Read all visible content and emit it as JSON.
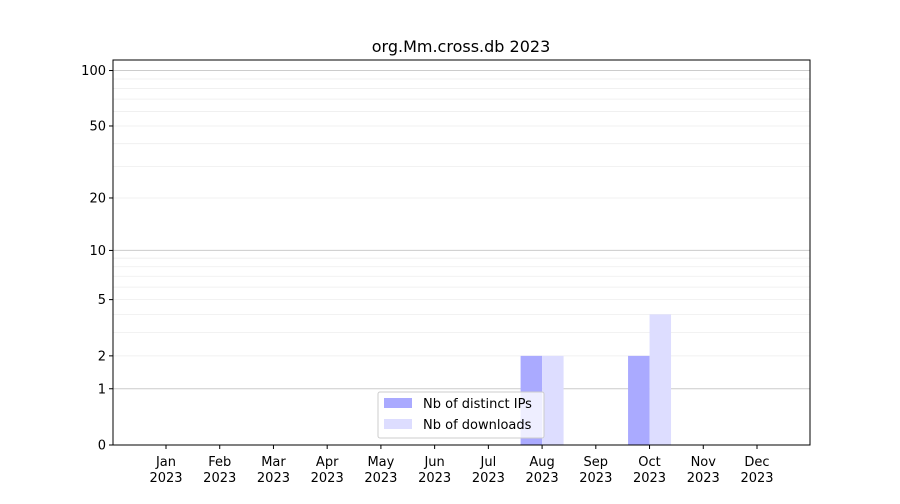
{
  "chart_data": {
    "type": "bar",
    "title": "org.Mm.cross.db 2023",
    "xlabel": "",
    "ylabel": "",
    "yscale": "log(1+y)",
    "ylim": [
      0,
      114
    ],
    "yticks": [
      0,
      1,
      2,
      5,
      10,
      20,
      50,
      100
    ],
    "ytick_labels": [
      "0",
      "1",
      "2",
      "5",
      "10",
      "20",
      "50",
      "100"
    ],
    "grid": true,
    "legend_position": "bottom-center",
    "categories": [
      "Jan\n2023",
      "Feb\n2023",
      "Mar\n2023",
      "Apr\n2023",
      "May\n2023",
      "Jun\n2023",
      "Jul\n2023",
      "Aug\n2023",
      "Sep\n2023",
      "Oct\n2023",
      "Nov\n2023",
      "Dec\n2023"
    ],
    "category_lines": [
      [
        "Jan",
        "2023"
      ],
      [
        "Feb",
        "2023"
      ],
      [
        "Mar",
        "2023"
      ],
      [
        "Apr",
        "2023"
      ],
      [
        "May",
        "2023"
      ],
      [
        "Jun",
        "2023"
      ],
      [
        "Jul",
        "2023"
      ],
      [
        "Aug",
        "2023"
      ],
      [
        "Sep",
        "2023"
      ],
      [
        "Oct",
        "2023"
      ],
      [
        "Nov",
        "2023"
      ],
      [
        "Dec",
        "2023"
      ]
    ],
    "series": [
      {
        "name": "Nb of distinct IPs",
        "color": "#aaaaff",
        "values": [
          0,
          0,
          0,
          0,
          0,
          0,
          0,
          2,
          0,
          2,
          0,
          0
        ]
      },
      {
        "name": "Nb of downloads",
        "color": "#ddddff",
        "values": [
          0,
          0,
          0,
          0,
          0,
          0,
          0,
          2,
          0,
          4,
          0,
          0
        ]
      }
    ]
  }
}
